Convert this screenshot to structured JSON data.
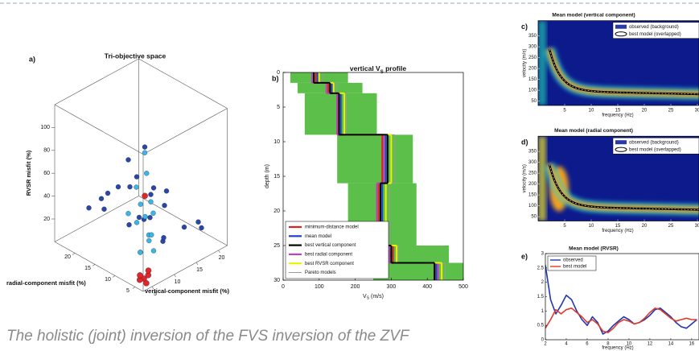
{
  "caption": "The holistic (joint) inversion of the FVS inversion of the ZVF",
  "chart_data": [
    {
      "type": "scatter3d",
      "panel": "a)",
      "title": "Tri-objective space",
      "xlabel": "vertical-component misfit (%)",
      "ylabel": "radial-component misfit (%)",
      "zlabel": "RVSR misfit (%)",
      "xlim": [
        3,
        22
      ],
      "ylim": [
        3,
        25
      ],
      "zlim": [
        0,
        120
      ],
      "xticks": [
        5,
        10,
        15,
        20
      ],
      "yticks": [
        5,
        10,
        15,
        20
      ],
      "zticks": [
        20,
        40,
        60,
        80,
        100
      ],
      "series": [
        {
          "color": "#2a46a6",
          "x": [
            8,
            12,
            15,
            6,
            10,
            18,
            9,
            14,
            7,
            11,
            16,
            5,
            13,
            9,
            20,
            8,
            12,
            6,
            10,
            7,
            15,
            11
          ],
          "y": [
            12,
            8,
            6,
            16,
            14,
            5,
            20,
            10,
            9,
            18,
            12,
            14,
            15,
            7,
            8,
            22,
            11,
            10,
            9,
            7,
            16,
            6
          ],
          "z": [
            30,
            15,
            25,
            40,
            55,
            20,
            35,
            10,
            80,
            45,
            30,
            60,
            20,
            70,
            15,
            25,
            50,
            95,
            38,
            110,
            12,
            65
          ]
        },
        {
          "color": "#3cb4e6",
          "x": [
            6,
            7,
            8,
            6.5,
            7.5,
            9,
            6,
            8,
            7,
            6.5,
            7,
            8.5,
            5.5,
            7,
            6
          ],
          "y": [
            7,
            6,
            8,
            7.5,
            6.5,
            7,
            8,
            6,
            9,
            6,
            7,
            7,
            6.5,
            5.5,
            10
          ],
          "z": [
            20,
            35,
            45,
            60,
            28,
            15,
            75,
            52,
            40,
            90,
            105,
            30,
            22,
            65,
            48
          ]
        },
        {
          "color": "#e0262b",
          "x": [
            5,
            5.5,
            4.5,
            6,
            5,
            4.8,
            5.2
          ],
          "y": [
            5,
            4.5,
            5.5,
            5,
            6,
            4.2,
            5
          ],
          "z": [
            3,
            6,
            2,
            8,
            4,
            1,
            75
          ]
        }
      ]
    },
    {
      "type": "step",
      "panel": "b)",
      "title": "vertical V",
      "title_sub": "S",
      "title_end": " profile",
      "xlabel": "V",
      "xlabel_sub": "S",
      "xlabel_end": " (m/s)",
      "ylabel": "depth (m)",
      "xlim": [
        0,
        500
      ],
      "ylim": [
        0,
        30
      ],
      "y_inverted": true,
      "xticks": [
        0,
        100,
        200,
        300,
        400,
        500
      ],
      "yticks": [
        0,
        5,
        10,
        15,
        20,
        25,
        30
      ],
      "depth_tops": [
        0,
        1.5,
        3,
        9,
        16,
        25,
        27.5
      ],
      "band": {
        "color": "#5cbf49",
        "lower": [
          20,
          40,
          60,
          150,
          180,
          220,
          250
        ],
        "upper": [
          180,
          220,
          260,
          360,
          370,
          460,
          500
        ]
      },
      "legend": "lower left",
      "series": [
        {
          "name": "minimum-distance model",
          "color": "#e02020",
          "values": [
            90,
            125,
            150,
            275,
            265,
            305,
            420
          ]
        },
        {
          "name": "mean model",
          "color": "#2040d0",
          "values": [
            95,
            135,
            160,
            285,
            275,
            300,
            425
          ]
        },
        {
          "name": "best vertical component",
          "color": "#000000",
          "values": [
            85,
            130,
            155,
            290,
            270,
            300,
            420
          ]
        },
        {
          "name": "best radial component",
          "color": "#c040c0",
          "values": [
            80,
            120,
            150,
            280,
            260,
            295,
            430
          ]
        },
        {
          "name": "best RVSR component",
          "color": "#f0f000",
          "values": [
            100,
            140,
            170,
            300,
            285,
            315,
            440
          ]
        },
        {
          "name": "Pareto models",
          "color": "#9a9a9a",
          "values": [
            110,
            150,
            175,
            310,
            295,
            320,
            450
          ]
        }
      ]
    },
    {
      "type": "heatmap",
      "panel": "c)",
      "title": "Mean model (vertical component)",
      "xlabel": "frequency (Hz)",
      "ylabel": "velocity (m/s)",
      "xlim": [
        0,
        30.3
      ],
      "ylim": [
        30,
        420
      ],
      "xticks": [
        5,
        10,
        15,
        20,
        25,
        30
      ],
      "yticks": [
        50,
        100,
        150,
        200,
        250,
        300,
        350
      ],
      "legend_entries": [
        "observed (background)",
        "best model (overlapped)"
      ]
    },
    {
      "type": "heatmap",
      "panel": "d)",
      "title": "Mean model (radial component)",
      "xlabel": "frequency (Hz)",
      "ylabel": "velocity (m/s)",
      "xlim": [
        0,
        30.3
      ],
      "ylim": [
        30,
        420
      ],
      "xticks": [
        5,
        10,
        15,
        20,
        25,
        30
      ],
      "yticks": [
        50,
        100,
        150,
        200,
        250,
        300,
        350
      ],
      "legend_entries": [
        "observed (background)",
        "best model (overlapped)"
      ]
    },
    {
      "type": "line",
      "panel": "e)",
      "title": "Mean model (RVSR)",
      "xlabel": "frequency (Hz)",
      "xlim": [
        2,
        16.7
      ],
      "ylim": [
        0,
        3
      ],
      "xticks": [
        2,
        4,
        6,
        8,
        10,
        12,
        14,
        16
      ],
      "yticks": [
        0,
        0.5,
        1,
        1.5,
        2,
        2.5,
        3
      ],
      "x": [
        2,
        2.5,
        3,
        3.5,
        4,
        4.5,
        5,
        5.5,
        6,
        6.5,
        7,
        7.5,
        8,
        8.5,
        9,
        9.5,
        10,
        10.5,
        11,
        11.5,
        12,
        12.5,
        13,
        13.5,
        14,
        14.5,
        15,
        15.5,
        16,
        16.5
      ],
      "series": [
        {
          "name": "observed",
          "color": "#2038b0",
          "values": [
            2.6,
            1.4,
            0.9,
            1.2,
            1.55,
            1.4,
            1.0,
            0.7,
            0.5,
            0.8,
            0.6,
            0.2,
            0.3,
            0.5,
            0.65,
            0.8,
            0.7,
            0.55,
            0.6,
            0.7,
            0.85,
            1.05,
            1.1,
            0.95,
            0.8,
            0.6,
            0.45,
            0.4,
            0.55,
            0.7
          ]
        },
        {
          "name": "best model",
          "color": "#e03a2a",
          "values": [
            0.4,
            0.7,
            1.05,
            0.9,
            1.05,
            1.1,
            0.95,
            0.8,
            0.6,
            0.7,
            0.55,
            0.3,
            0.25,
            0.4,
            0.6,
            0.7,
            0.65,
            0.55,
            0.6,
            0.75,
            0.95,
            1.1,
            1.05,
            0.9,
            0.75,
            0.65,
            0.7,
            0.75,
            0.7,
            0.7
          ]
        }
      ]
    }
  ]
}
